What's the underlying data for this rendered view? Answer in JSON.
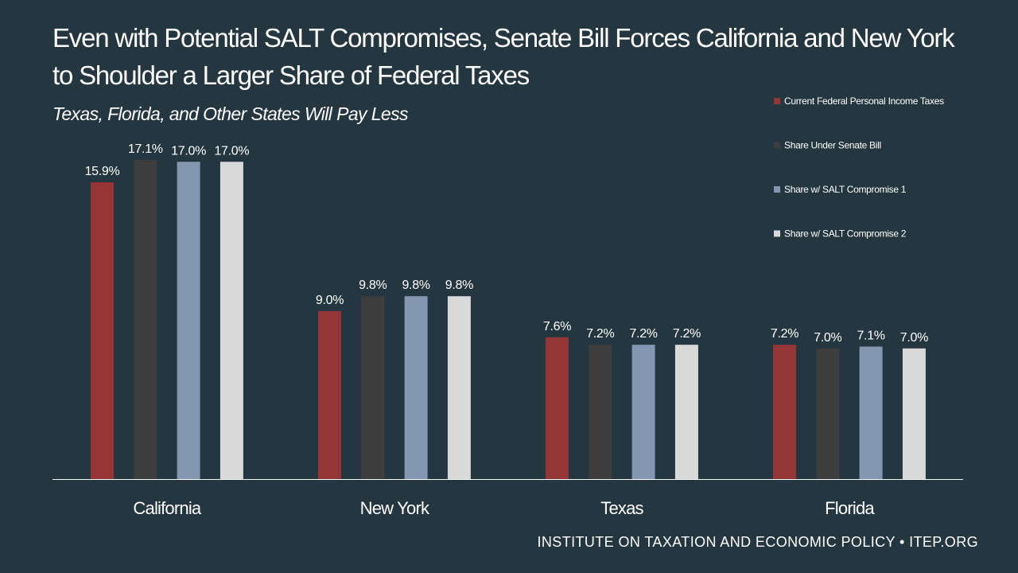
{
  "title": "Even with Potential SALT Compromises, Senate Bill Forces California and New York to Shoulder a Larger Share of Federal Taxes",
  "subtitle": "Texas, Florida, and Other States Will Pay Less",
  "footer": "INSTITUTE ON TAXATION AND ECONOMIC POLICY • ITEP.ORG",
  "colors": {
    "background": "#243640",
    "text": "#ffffff",
    "baseline": "#ffffff"
  },
  "chart_data": {
    "type": "bar",
    "categories": [
      "California",
      "New York",
      "Texas",
      "Florida"
    ],
    "series": [
      {
        "name": "Current Federal Personal Income Taxes",
        "color": "#953536",
        "values": [
          15.9,
          9.0,
          7.6,
          7.2
        ],
        "labels": [
          "15.9%",
          "9.0%",
          "7.6%",
          "7.2%"
        ]
      },
      {
        "name": "Share Under Senate Bill",
        "color": "#3e3e3e",
        "values": [
          17.1,
          9.8,
          7.2,
          7.0
        ],
        "labels": [
          "17.1%",
          "9.8%",
          "7.2%",
          "7.0%"
        ]
      },
      {
        "name": "Share w/ SALT Compromise 1",
        "color": "#8497b0",
        "values": [
          17.0,
          9.8,
          7.2,
          7.1
        ],
        "labels": [
          "17.0%",
          "9.8%",
          "7.2%",
          "7.1%"
        ]
      },
      {
        "name": "Share w/ SALT Compromise 2",
        "color": "#d9d9d9",
        "values": [
          17.0,
          9.8,
          7.2,
          7.0
        ],
        "labels": [
          "17.0%",
          "9.8%",
          "7.2%",
          "7.0%"
        ]
      }
    ],
    "ylim": [
      0,
      17.1
    ],
    "grid": false,
    "legend": "top-right",
    "data_labels": true
  }
}
